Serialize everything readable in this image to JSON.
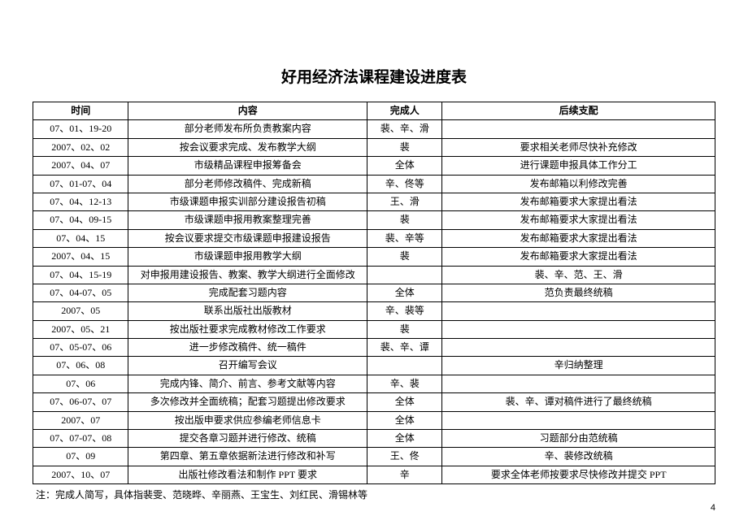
{
  "title": "好用经济法课程建设进度表",
  "columns": [
    "时间",
    "内容",
    "完成人",
    "后续支配"
  ],
  "rows": [
    [
      "07、01、19-20",
      "部分老师发布所负责教案内容",
      "裴、辛、滑",
      ""
    ],
    [
      "2007、02、02",
      "按会议要求完成、发布教学大纲",
      "裴",
      "要求相关老师尽快补充修改"
    ],
    [
      "2007、04、07",
      "市级精品课程申报筹备会",
      "全体",
      "进行课题申报具体工作分工"
    ],
    [
      "07、01-07、04",
      "部分老师修改稿件、完成新稿",
      "辛、佟等",
      "发布邮箱以利修改完善"
    ],
    [
      "07、04、12-13",
      "市级课题申报实训部分建设报告初稿",
      "王、滑",
      "发布邮箱要求大家提出看法"
    ],
    [
      "07、04、09-15",
      "市级课题申报用教案整理完善",
      "裴",
      "发布邮箱要求大家提出看法"
    ],
    [
      "07、04、15",
      "按会议要求提交市级课题申报建设报告",
      "裴、辛等",
      "发布邮箱要求大家提出看法"
    ],
    [
      "2007、04、15",
      "市级课题申报用教学大纲",
      "裴",
      "发布邮箱要求大家提出看法"
    ],
    [
      "07、04、15-19",
      "对申报用建设报告、教案、教学大纲进行全面修改",
      "",
      "裴、辛、范、王、滑"
    ],
    [
      "07、04-07、05",
      "完成配套习题内容",
      "全体",
      "范负责最终统稿"
    ],
    [
      "2007、05",
      "联系出版社出版教材",
      "辛、裴等",
      ""
    ],
    [
      "2007、05、21",
      "按出版社要求完成教材修改工作要求",
      "裴",
      ""
    ],
    [
      "07、05-07、06",
      "进一步修改稿件、统一稿件",
      "裴、辛、谭",
      ""
    ],
    [
      "07、06、08",
      "召开编写会议",
      "",
      "辛归纳整理"
    ],
    [
      "07、06",
      "完成内锋、简介、前言、参考文献等内容",
      "辛、裴",
      ""
    ],
    [
      "07、06-07、07",
      "多次修改并全面统稿；配套习题提出修改要求",
      "全体",
      "裴、辛、谭对稿件进行了最终统稿"
    ],
    [
      "2007、07",
      "按出版申要求供应参编老师信息卡",
      "全体",
      ""
    ],
    [
      "07、07-07、08",
      "提交各章习题并进行修改、统稿",
      "全体",
      "习题部分由范统稿"
    ],
    [
      "07、09",
      "第四章、第五章依据新法进行修改和补写",
      "王、佟",
      "辛、裴修改统稿"
    ],
    [
      "2007、10、07",
      "出版社修改看法和制作 PPT 要求",
      "辛",
      "要求全体老师按要求尽快修改并提交 PPT"
    ]
  ],
  "footnote": "注：完成人简写，具体指裴雯、范晓晔、辛丽燕、王宝生、刘红民、滑锡林等",
  "page_number": "4",
  "styling": {
    "background_color": "#ffffff",
    "border_color": "#000000",
    "text_color": "#000000",
    "title_fontsize": 19,
    "body_fontsize": 12,
    "font_family": "SimSun"
  }
}
